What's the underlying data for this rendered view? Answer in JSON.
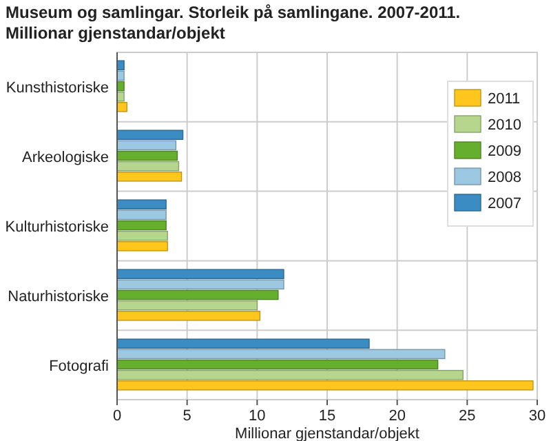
{
  "chart_data": {
    "type": "bar",
    "orientation": "horizontal",
    "title": "Museum og samlingar. Storleik på samlingane. 2007-2011.",
    "subtitle": "Millionar gjenstandar/objekt",
    "xlabel": "Millionar gjenstandar/objekt",
    "categories": [
      "Kunsthistoriske",
      "Arkeologiske",
      "Kulturhistoriske",
      "Naturhistoriske",
      "Fotografi"
    ],
    "series": [
      {
        "name": "2007",
        "color": "#3a8cc3",
        "values": [
          0.5,
          4.7,
          3.5,
          11.9,
          18.0
        ]
      },
      {
        "name": "2008",
        "color": "#9dc8e2",
        "values": [
          0.5,
          4.2,
          3.5,
          11.9,
          23.4
        ]
      },
      {
        "name": "2009",
        "color": "#66ae2e",
        "values": [
          0.5,
          4.3,
          3.5,
          11.5,
          22.9
        ]
      },
      {
        "name": "2010",
        "color": "#b5d68c",
        "values": [
          0.5,
          4.4,
          3.6,
          10.0,
          24.7
        ]
      },
      {
        "name": "2011",
        "color": "#ffc61e",
        "values": [
          0.7,
          4.6,
          3.6,
          10.2,
          29.7
        ]
      }
    ],
    "xlim": [
      0,
      30
    ],
    "xticks": [
      0,
      5,
      10,
      15,
      20,
      25,
      30
    ],
    "grid": true,
    "legend": "right"
  }
}
